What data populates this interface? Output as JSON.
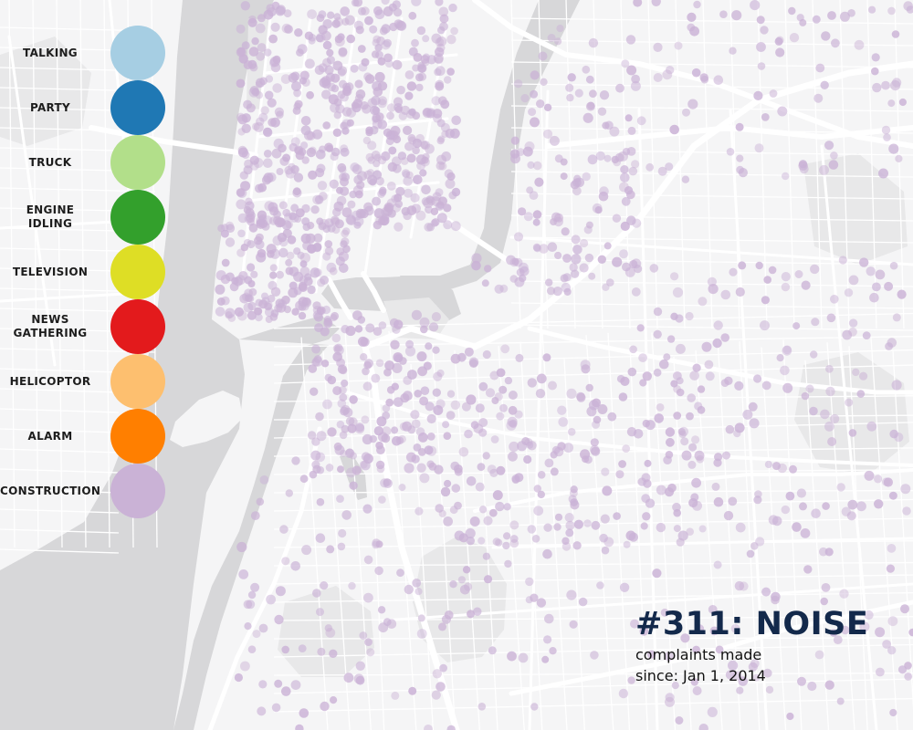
{
  "legend": {
    "items": [
      {
        "label": "TALKING",
        "color": "#a6cee3"
      },
      {
        "label": "PARTY",
        "color": "#1f78b4"
      },
      {
        "label": "TRUCK",
        "color": "#b2df8a"
      },
      {
        "label": "ENGINE\nIDLING",
        "color": "#33a02c"
      },
      {
        "label": "TELEVISION",
        "color": "#dede25"
      },
      {
        "label": "NEWS\nGATHERING",
        "color": "#e31a1c"
      },
      {
        "label": "HELICOPTOR",
        "color": "#fdbf6f"
      },
      {
        "label": "ALARM",
        "color": "#ff7f00"
      },
      {
        "label": "CONSTRUCTION",
        "color": "#cab2d6"
      }
    ]
  },
  "title": {
    "heading": "#311: NOISE",
    "line1": "complaints made",
    "line2": "since: Jan 1, 2014"
  },
  "map": {
    "land_color": "#f5f5f6",
    "water_color": "#d7d7d9",
    "road_color": "#ffffff",
    "park_color": "#e8e8e9",
    "complaint_dot_color": "#cab2d6"
  }
}
